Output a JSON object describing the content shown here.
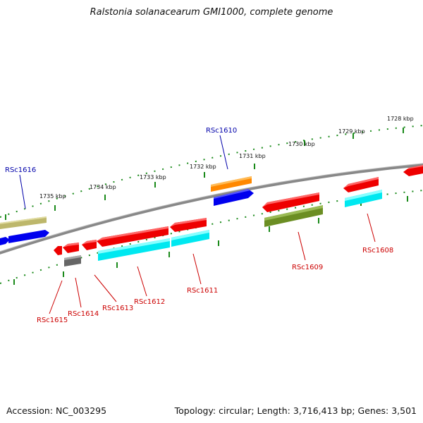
{
  "title": "Ralstonia solanacearum GMI1000, complete genome",
  "footer": {
    "accession": "Accession: NC_003295",
    "summary": "Topology: circular; Length: 3,716,413 bp; Genes: 3,501"
  },
  "scale_labels": [
    "1728 kbp",
    "1729 kbp",
    "1730 kbp",
    "1731 kbp",
    "1732 kbp",
    "1733 kbp",
    "1734 kbp",
    "1735 kbp"
  ],
  "gene_labels": {
    "forward": [
      "RSc1616",
      "RSc1610"
    ],
    "reverse": [
      "RSc1615",
      "RSc1614",
      "RSc1613",
      "RSc1612",
      "RSc1611",
      "RSc1609",
      "RSc1608"
    ]
  },
  "colors": {
    "cds": "#ee0000",
    "gene": "#0000ee",
    "rrna": "#ff8800",
    "misc": "#00e8f0",
    "olive": "#6b8e23",
    "khaki": "#bdb76b",
    "gray": "#666666",
    "backbone": "#888888",
    "ticks": "#1a8a1a"
  }
}
